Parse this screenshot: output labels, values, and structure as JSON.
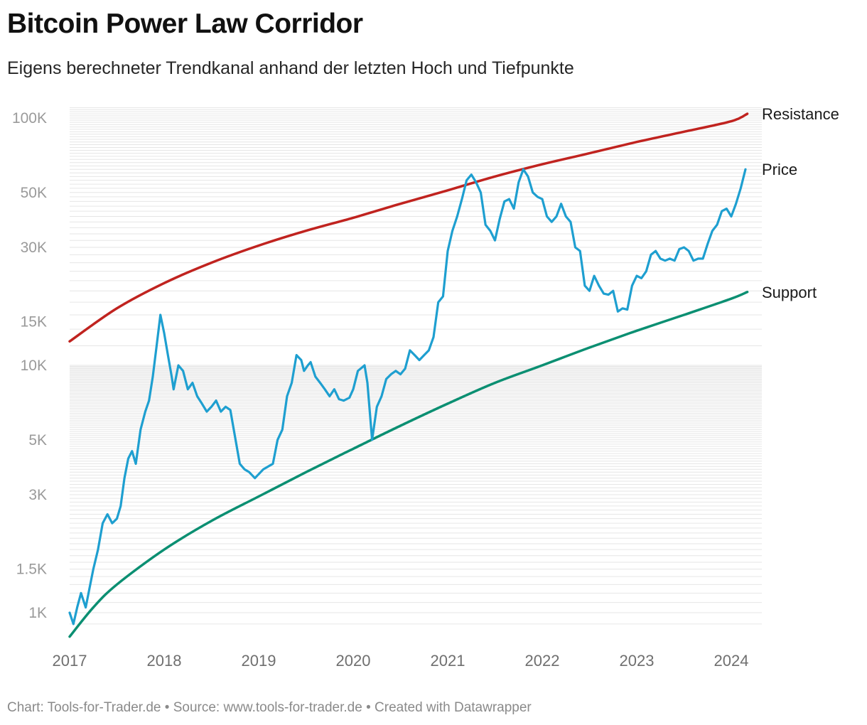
{
  "title": "Bitcoin Power Law Corridor",
  "subtitle": "Eigens berechneter Trendkanal anhand der letzten Hoch und Tiefpunkte",
  "footer": {
    "chart_by": "Chart: Tools-for-Trader.de",
    "source": "Source: www.tools-for-trader.de",
    "created_with": "Created with Datawrapper",
    "separator": " • "
  },
  "colors": {
    "resistance": "#c0231f",
    "support": "#0b8f72",
    "price": "#1e9fd0",
    "grid": "#e6e6e6"
  },
  "chart_data": {
    "type": "line",
    "title": "Bitcoin Power Law Corridor",
    "subtitle": "Eigens berechneter Trendkanal anhand der letzten Hoch und Tiefpunkte",
    "x_scale": "time",
    "y_scale": "log",
    "xlim": [
      2017.0,
      2024.2
    ],
    "ylim": [
      780,
      115000
    ],
    "x_ticks": [
      2017,
      2018,
      2019,
      2020,
      2021,
      2022,
      2023,
      2024
    ],
    "x_tick_labels": [
      "2017",
      "2018",
      "2019",
      "2020",
      "2021",
      "2022",
      "2023",
      "2024"
    ],
    "y_ticks": [
      1000,
      1500,
      3000,
      5000,
      10000,
      15000,
      30000,
      50000,
      100000
    ],
    "y_tick_labels": [
      "1K",
      "1.5K",
      "3K",
      "5K",
      "10K",
      "15K",
      "30K",
      "50K",
      "100K"
    ],
    "series": [
      {
        "name": "Resistance",
        "label": "Resistance",
        "x": [
          2017.0,
          2017.5,
          2018.0,
          2018.5,
          2019.0,
          2019.5,
          2020.0,
          2020.5,
          2021.0,
          2021.5,
          2022.0,
          2022.5,
          2023.0,
          2023.5,
          2024.0,
          2024.17
        ],
        "values": [
          12500,
          17000,
          21500,
          26000,
          30500,
          35000,
          39500,
          45000,
          51000,
          58000,
          65000,
          72000,
          80000,
          88000,
          97000,
          104000
        ]
      },
      {
        "name": "Support",
        "label": "Support",
        "x": [
          2017.0,
          2017.25,
          2017.5,
          2018.0,
          2018.5,
          2019.0,
          2019.5,
          2020.0,
          2020.5,
          2021.0,
          2021.5,
          2022.0,
          2022.5,
          2023.0,
          2023.5,
          2024.0,
          2024.17
        ],
        "values": [
          800,
          1050,
          1300,
          1800,
          2350,
          2950,
          3700,
          4600,
          5700,
          7000,
          8500,
          10000,
          11800,
          13800,
          16000,
          18600,
          19800
        ]
      },
      {
        "name": "Price",
        "label": "Price",
        "x": [
          2017.0,
          2017.04,
          2017.08,
          2017.12,
          2017.17,
          2017.2,
          2017.25,
          2017.3,
          2017.35,
          2017.4,
          2017.45,
          2017.5,
          2017.54,
          2017.58,
          2017.62,
          2017.66,
          2017.7,
          2017.75,
          2017.8,
          2017.84,
          2017.88,
          2017.92,
          2017.96,
          2018.0,
          2018.04,
          2018.08,
          2018.1,
          2018.15,
          2018.2,
          2018.25,
          2018.3,
          2018.35,
          2018.4,
          2018.45,
          2018.5,
          2018.55,
          2018.6,
          2018.65,
          2018.7,
          2018.8,
          2018.85,
          2018.9,
          2018.96,
          2019.05,
          2019.15,
          2019.2,
          2019.25,
          2019.3,
          2019.35,
          2019.4,
          2019.45,
          2019.48,
          2019.52,
          2019.55,
          2019.6,
          2019.65,
          2019.7,
          2019.75,
          2019.8,
          2019.85,
          2019.9,
          2019.96,
          2020.0,
          2020.05,
          2020.12,
          2020.15,
          2020.2,
          2020.25,
          2020.3,
          2020.35,
          2020.4,
          2020.45,
          2020.5,
          2020.55,
          2020.6,
          2020.65,
          2020.7,
          2020.75,
          2020.8,
          2020.85,
          2020.9,
          2020.95,
          2021.0,
          2021.05,
          2021.1,
          2021.15,
          2021.2,
          2021.25,
          2021.3,
          2021.35,
          2021.4,
          2021.45,
          2021.5,
          2021.55,
          2021.6,
          2021.65,
          2021.7,
          2021.75,
          2021.8,
          2021.85,
          2021.9,
          2021.95,
          2022.0,
          2022.05,
          2022.1,
          2022.15,
          2022.2,
          2022.25,
          2022.3,
          2022.35,
          2022.4,
          2022.45,
          2022.5,
          2022.55,
          2022.6,
          2022.65,
          2022.7,
          2022.75,
          2022.8,
          2022.85,
          2022.9,
          2022.95,
          2023.0,
          2023.05,
          2023.1,
          2023.15,
          2023.2,
          2023.25,
          2023.3,
          2023.35,
          2023.4,
          2023.45,
          2023.5,
          2023.55,
          2023.6,
          2023.65,
          2023.7,
          2023.75,
          2023.8,
          2023.85,
          2023.9,
          2023.95,
          2024.0,
          2024.05,
          2024.1,
          2024.15
        ],
        "values": [
          1000,
          900,
          1050,
          1200,
          1050,
          1200,
          1500,
          1800,
          2300,
          2500,
          2300,
          2400,
          2700,
          3500,
          4200,
          4500,
          4000,
          5500,
          6500,
          7200,
          9000,
          12000,
          16000,
          13500,
          11000,
          9000,
          8000,
          10000,
          9500,
          8000,
          8500,
          7500,
          7000,
          6500,
          6800,
          7200,
          6500,
          6800,
          6600,
          4000,
          3800,
          3700,
          3500,
          3800,
          4000,
          5000,
          5500,
          7500,
          8500,
          11000,
          10500,
          9500,
          10000,
          10300,
          9000,
          8500,
          8000,
          7500,
          8000,
          7300,
          7200,
          7400,
          8000,
          9500,
          10000,
          8500,
          5000,
          6800,
          7500,
          8800,
          9200,
          9500,
          9200,
          9700,
          11500,
          11000,
          10500,
          11000,
          11500,
          13000,
          18000,
          19000,
          29000,
          35000,
          40000,
          47000,
          56000,
          59000,
          55000,
          50000,
          37000,
          35000,
          32000,
          39000,
          46000,
          47000,
          43000,
          55000,
          62000,
          58000,
          50000,
          48000,
          47000,
          40000,
          38000,
          40000,
          45000,
          40000,
          38000,
          30000,
          29000,
          21000,
          20000,
          23000,
          21000,
          19500,
          19300,
          20000,
          16500,
          17000,
          16800,
          21000,
          23000,
          22500,
          24000,
          28000,
          29000,
          27000,
          26500,
          27000,
          26500,
          29500,
          30000,
          29000,
          26500,
          27000,
          27000,
          31000,
          35000,
          37000,
          42000,
          43000,
          40000,
          45000,
          52000,
          62000
        ]
      }
    ],
    "legend": "inline-right"
  }
}
